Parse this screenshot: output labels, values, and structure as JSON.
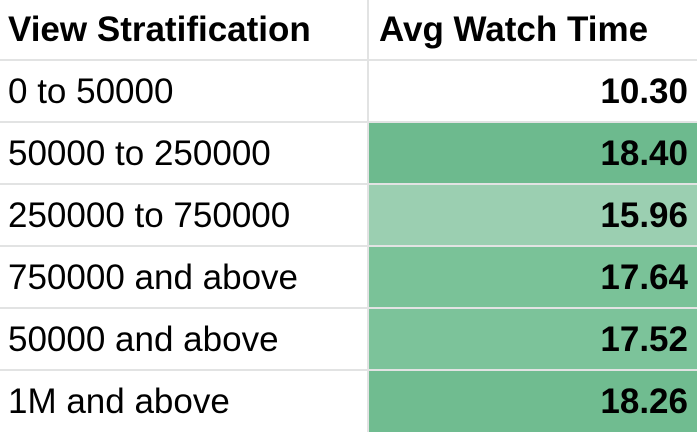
{
  "table": {
    "headers": [
      "View Stratification",
      "Avg Watch Time"
    ],
    "rows": [
      {
        "label": "0 to 50000",
        "value": "10.30",
        "fill": "#ffffff"
      },
      {
        "label": "50000 to 250000",
        "value": "18.40",
        "fill": "#6dba8e"
      },
      {
        "label": "250000 to 750000",
        "value": "15.96",
        "fill": "#9bcfb1"
      },
      {
        "label": "750000 and above",
        "value": "17.64",
        "fill": "#7ac298"
      },
      {
        "label": "50000 and above",
        "value": "17.52",
        "fill": "#7cc39a"
      },
      {
        "label": "1M and above",
        "value": "18.26",
        "fill": "#70bc90"
      }
    ]
  }
}
